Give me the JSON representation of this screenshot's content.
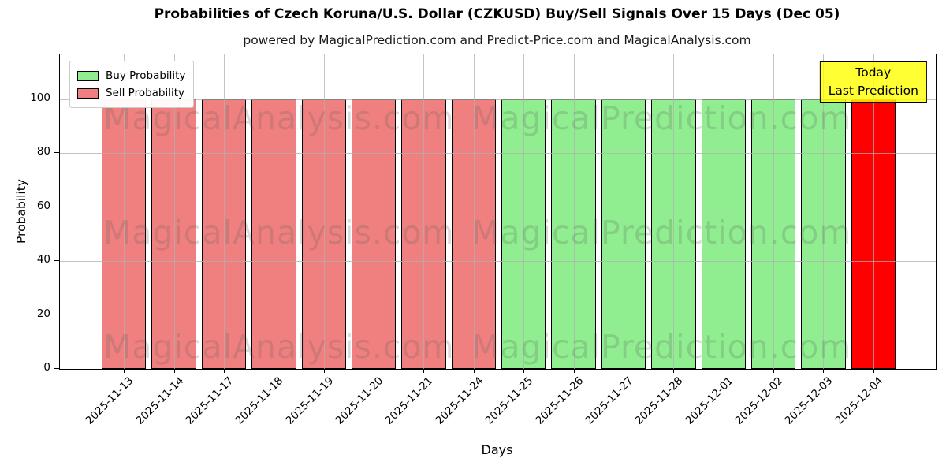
{
  "header": {
    "title": "Probabilities of Czech Koruna/U.S. Dollar (CZKUSD) Buy/Sell Signals Over 15 Days (Dec 05)",
    "subtitle": "powered by MagicalPrediction.com and Predict-Price.com and MagicalAnalysis.com"
  },
  "legend": {
    "items": [
      {
        "label": "Buy Probability",
        "color": "#90ee90"
      },
      {
        "label": "Sell Probability",
        "color": "#f08080"
      }
    ]
  },
  "annotation": {
    "line1": "Today",
    "line2": "Last Prediction",
    "bg_color": "rgba(255,255,0,0.8)"
  },
  "watermarks": {
    "left_text": "MagicalAnalysis.com",
    "right_text": "MagicalPrediction.com"
  },
  "chart_data": {
    "type": "bar",
    "title": "Probabilities of Czech Koruna/U.S. Dollar (CZKUSD) Buy/Sell Signals Over 15 Days (Dec 05)",
    "subtitle": "powered by MagicalPrediction.com and Predict-Price.com and MagicalAnalysis.com",
    "xlabel": "Days",
    "ylabel": "Probability",
    "ylim": [
      0,
      116.7
    ],
    "yticks": [
      0,
      20,
      40,
      60,
      80,
      100
    ],
    "dashed_guideline_y": 110,
    "grid": true,
    "legend_position": "upper left",
    "categories": [
      "2025-11-13",
      "2025-11-14",
      "2025-11-17",
      "2025-11-18",
      "2025-11-19",
      "2025-11-20",
      "2025-11-21",
      "2025-11-24",
      "2025-11-25",
      "2025-11-26",
      "2025-11-27",
      "2025-11-28",
      "2025-12-01",
      "2025-12-02",
      "2025-12-03",
      "2025-12-04"
    ],
    "values": [
      100,
      100,
      100,
      100,
      100,
      100,
      100,
      100,
      100,
      100,
      100,
      100,
      100,
      100,
      100,
      100
    ],
    "signals": [
      "sell",
      "sell",
      "sell",
      "sell",
      "sell",
      "sell",
      "sell",
      "sell",
      "buy",
      "buy",
      "buy",
      "buy",
      "buy",
      "buy",
      "buy",
      "today"
    ],
    "colors": {
      "buy": "#90ee90",
      "sell": "#f08080",
      "today": "#ff0000"
    }
  }
}
